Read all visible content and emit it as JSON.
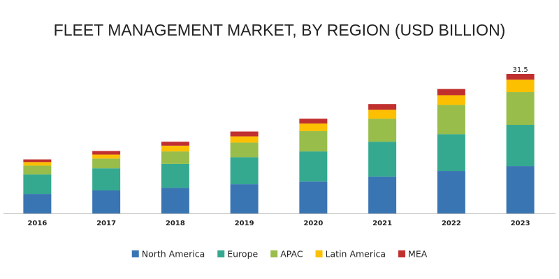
{
  "chart_data": {
    "type": "stacked_bar",
    "title": "FLEET MANAGEMENT MARKET, BY REGION (USD BILLION)",
    "categories": [
      "2016",
      "2017",
      "2018",
      "2019",
      "2020",
      "2021",
      "2022",
      "2023"
    ],
    "series": [
      {
        "name": "North America",
        "color": "#3a75b3",
        "values": [
          4.4,
          5.2,
          5.8,
          6.6,
          7.2,
          8.3,
          9.6,
          10.7
        ]
      },
      {
        "name": "Europe",
        "color": "#34a98f",
        "values": [
          4.4,
          5.0,
          5.4,
          6.1,
          6.8,
          7.9,
          8.3,
          9.3
        ]
      },
      {
        "name": "APAC",
        "color": "#98bd4b",
        "values": [
          2.0,
          2.2,
          2.8,
          3.3,
          4.6,
          5.2,
          6.6,
          7.4
        ]
      },
      {
        "name": "Latin America",
        "color": "#fcc000",
        "values": [
          0.8,
          0.9,
          1.3,
          1.4,
          1.7,
          2.0,
          2.2,
          2.8
        ]
      },
      {
        "name": "MEA",
        "color": "#c0302f",
        "values": [
          0.6,
          0.8,
          0.9,
          1.1,
          1.1,
          1.3,
          1.4,
          1.3
        ]
      }
    ],
    "total_labels": [
      null,
      null,
      null,
      null,
      null,
      null,
      null,
      31.5
    ]
  }
}
